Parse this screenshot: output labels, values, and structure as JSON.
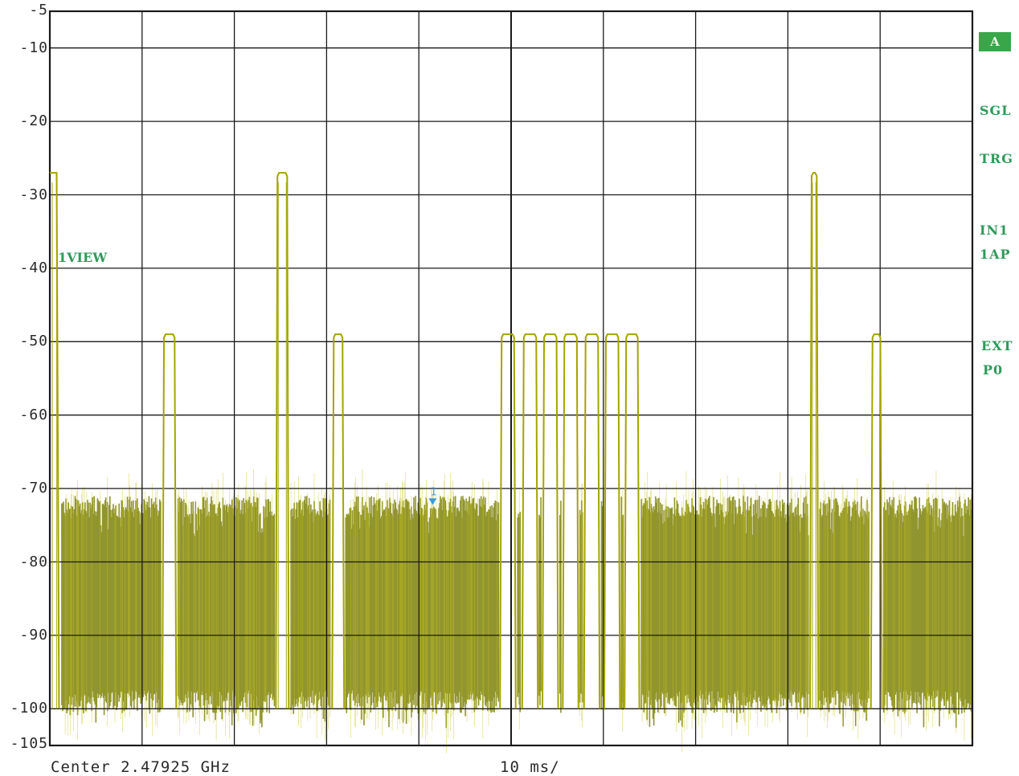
{
  "header": {
    "badge": "A"
  },
  "side_labels": {
    "sgl": "SGL",
    "trg": "TRG",
    "in1": "IN1",
    "ap": "1AP",
    "ext": "EXT",
    "p0": "P0"
  },
  "trace_label": "1VIEW",
  "footer": {
    "center": "Center 2.47925 GHz",
    "sweep": "10 ms/"
  },
  "colors": {
    "trace": "#a4a400",
    "fill": "#8b8f24",
    "grid": "#1a1a1a",
    "labels": "#2f9a5a",
    "marker": "#3a9bd8"
  },
  "chart_data": {
    "type": "line",
    "title": "",
    "xlabel": "",
    "ylabel": "",
    "xlim": [
      0,
      100
    ],
    "ylim": [
      -105,
      -5
    ],
    "y_tick_labels": [
      "-5",
      "-10",
      "-20",
      "-30",
      "-40",
      "-50",
      "-60",
      "-70",
      "-80",
      "-90",
      "-100",
      "-105"
    ],
    "y_ticks": [
      -5,
      -10,
      -20,
      -30,
      -40,
      -50,
      -60,
      -70,
      -80,
      -90,
      -100,
      -105
    ],
    "x_divisions": 10,
    "grid": true,
    "noise_floor": {
      "min": -100,
      "max": -74
    },
    "series": [
      {
        "pulses": [
          {
            "start": 0.0,
            "end": 1.0,
            "level": -27
          },
          {
            "start": 12.2,
            "end": 13.7,
            "level": -49
          },
          {
            "start": 24.5,
            "end": 25.9,
            "level": -27
          },
          {
            "start": 30.6,
            "end": 31.9,
            "level": -49
          },
          {
            "start": 48.8,
            "end": 50.5,
            "level": -49
          },
          {
            "start": 51.2,
            "end": 52.9,
            "level": -49
          },
          {
            "start": 53.4,
            "end": 55.1,
            "level": -49
          },
          {
            "start": 55.6,
            "end": 57.3,
            "level": -49
          },
          {
            "start": 57.9,
            "end": 59.6,
            "level": -49
          },
          {
            "start": 60.1,
            "end": 61.8,
            "level": -49
          },
          {
            "start": 62.3,
            "end": 63.9,
            "level": -49
          },
          {
            "start": 82.4,
            "end": 83.3,
            "level": -27
          },
          {
            "start": 89.0,
            "end": 90.2,
            "level": -49
          }
        ]
      }
    ],
    "marker": {
      "label": "1",
      "x": 41.5,
      "y": -72
    }
  }
}
